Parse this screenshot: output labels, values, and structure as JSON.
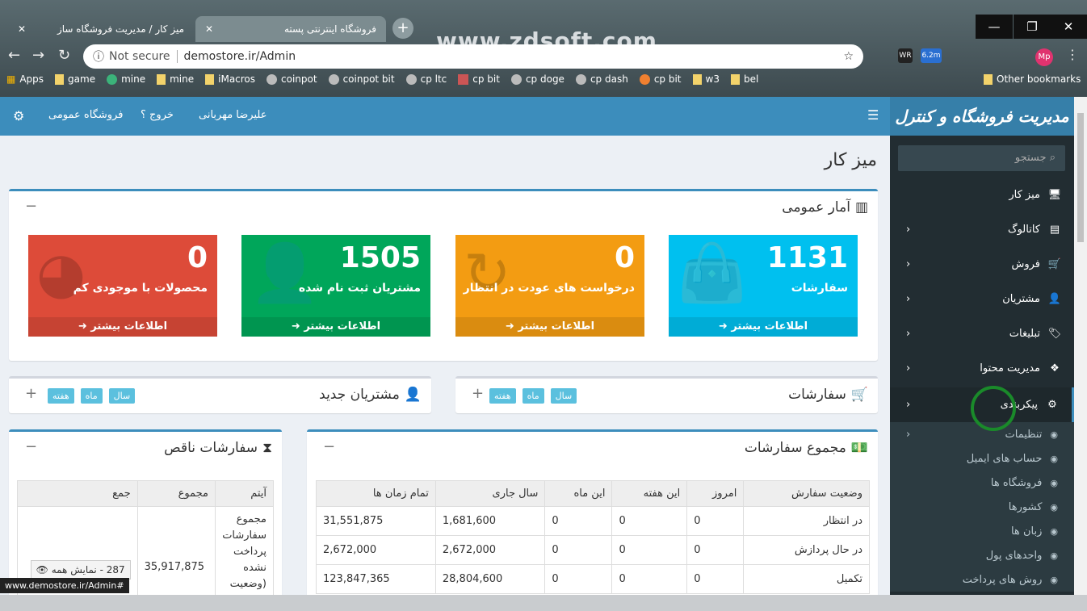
{
  "browser": {
    "tabs": [
      {
        "title": "میز کار / مدیریت فروشگاه ساز",
        "close": "✕"
      },
      {
        "title": "فروشگاه اینترنتی پسته",
        "close": "✕"
      }
    ],
    "new_tab": "+",
    "watermark": "www.zdsoft.com",
    "window": {
      "minimize": "—",
      "restore": "❐",
      "close": "✕"
    },
    "security": "Not secure",
    "url": "demostore.ir/Admin",
    "extensions": [
      "WR",
      "6.2m"
    ],
    "profile": "Mp",
    "bookmarks": [
      "Apps",
      "game",
      "mine",
      "mine",
      "iMacros",
      "coinpot",
      "coinpot bit",
      "cp ltc",
      "cp bit",
      "cp doge",
      "cp dash",
      "cp bit",
      "w3",
      "bel"
    ],
    "other_bookmarks": "Other bookmarks",
    "status_url": "www.demostore.ir/Admin#"
  },
  "header": {
    "user": "علیرضا مهربانی",
    "logout": "خروج ؟",
    "store": "فروشگاه عمومی"
  },
  "logo": "مدیریت فروشگاه و کنترل محتوا",
  "sidebar": {
    "search_placeholder": "جستجو",
    "items": [
      {
        "label": "میز کار",
        "icon": "desktop-icon"
      },
      {
        "label": "کاتالوگ",
        "icon": "book-icon"
      },
      {
        "label": "فروش",
        "icon": "cart-icon"
      },
      {
        "label": "مشتریان",
        "icon": "user-icon"
      },
      {
        "label": "تبلیغات",
        "icon": "tag-icon"
      },
      {
        "label": "مدیریت محتوا",
        "icon": "cubes-icon"
      },
      {
        "label": "پیکربندی",
        "icon": "gears-icon"
      }
    ],
    "subitems": [
      "تنظیمات",
      "حساب های ایمیل",
      "فروشگاه ها",
      "کشورها",
      "زبان ها",
      "واحدهای پول",
      "روش های پرداخت"
    ]
  },
  "page": {
    "title": "میز کار"
  },
  "stats": {
    "title": "آمار عمومی",
    "more": "اطلاعات بیشتر",
    "tiles": [
      {
        "value": "1131",
        "label": "سفارشات",
        "color": "#00c0ef"
      },
      {
        "value": "0",
        "label": "درخواست های عودت در انتظار",
        "color": "#f39c12"
      },
      {
        "value": "1505",
        "label": "مشتریان ثبت نام شده",
        "color": "#00a65a"
      },
      {
        "value": "0",
        "label": "محصولات با موجودی کم",
        "color": "#dd4b39"
      }
    ]
  },
  "orders_box": {
    "title": "سفارشات",
    "pills": [
      "سال",
      "ماه",
      "هفته"
    ]
  },
  "customers_box": {
    "title": "مشتریان جدید",
    "pills": [
      "سال",
      "ماه",
      "هفته"
    ]
  },
  "order_totals": {
    "title": "مجموع سفارشات",
    "headers": [
      "وضعیت سفارش",
      "امروز",
      "این هفته",
      "این ماه",
      "سال جاری",
      "تمام زمان ها"
    ],
    "rows": [
      [
        "در انتظار",
        "0",
        "0",
        "0",
        "1,681,600",
        "31,551,875"
      ],
      [
        "در حال پردازش",
        "0",
        "0",
        "0",
        "2,672,000",
        "2,672,000"
      ],
      [
        "تکمیل",
        "0",
        "0",
        "0",
        "28,804,600",
        "123,847,365"
      ]
    ]
  },
  "incomplete": {
    "title": "سفارشات ناقص",
    "headers": [
      "آیتم",
      "مجموع",
      "جمع"
    ],
    "item": "مجموع سفارشات پرداخت نشده (وضعیت",
    "total": "35,917,875",
    "view_all": "287 - نمایش همه"
  }
}
